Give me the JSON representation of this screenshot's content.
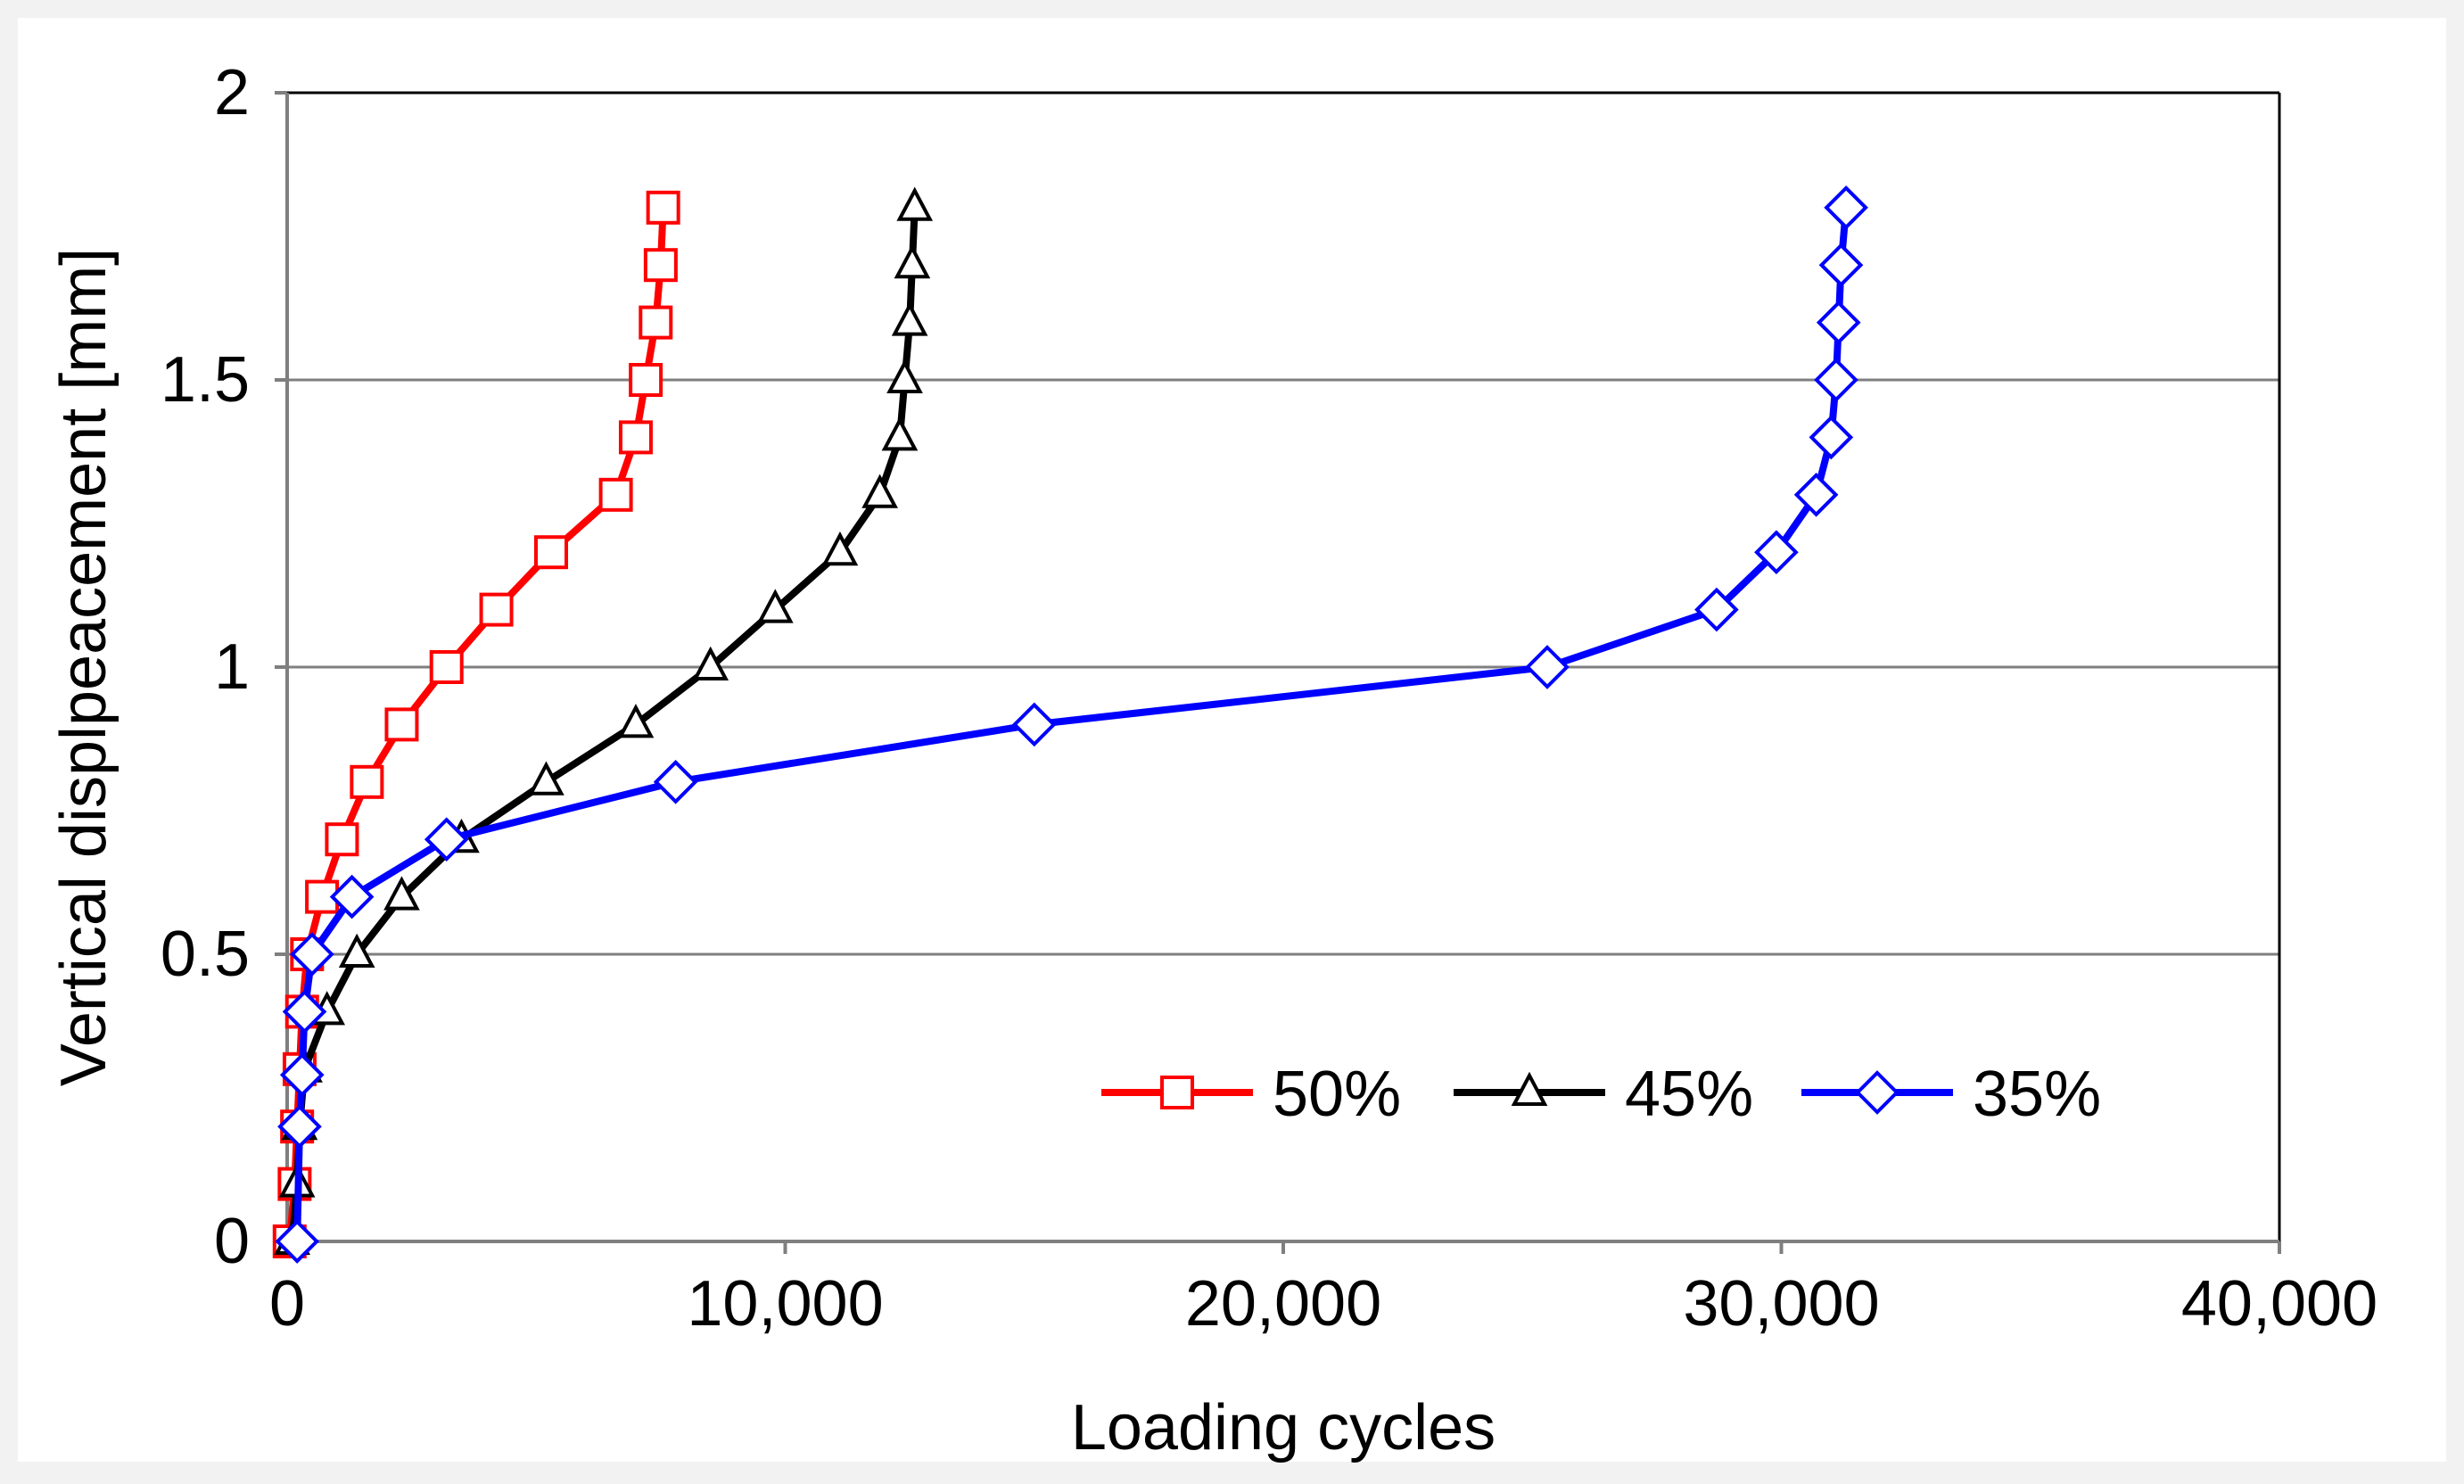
{
  "chart_data": {
    "type": "line",
    "title": "",
    "xlabel": "Loading cycles",
    "ylabel": "Vertical displpeacement  [mm]",
    "xlim": [
      0,
      40000
    ],
    "ylim": [
      0,
      2
    ],
    "xticks": [
      0,
      10000,
      20000,
      30000,
      40000
    ],
    "xtick_labels": [
      "0",
      "10,000",
      "20,000",
      "30,000",
      "40,000"
    ],
    "yticks": [
      0,
      0.5,
      1,
      1.5,
      2
    ],
    "ytick_labels": [
      "0",
      "0.5",
      "1",
      "1.5",
      "2"
    ],
    "grid": "horizontal",
    "legend_position": "bottom-right",
    "series": [
      {
        "name": "50%",
        "color": "#ff0000",
        "marker": "square",
        "x": [
          50,
          150,
          200,
          250,
          300,
          400,
          700,
          1100,
          1600,
          2300,
          3200,
          4200,
          5300,
          6600,
          7000,
          7200,
          7400,
          7500,
          7550
        ],
        "y": [
          0,
          0.1,
          0.2,
          0.3,
          0.4,
          0.5,
          0.6,
          0.7,
          0.8,
          0.9,
          1.0,
          1.1,
          1.2,
          1.3,
          1.4,
          1.5,
          1.6,
          1.7,
          1.8
        ]
      },
      {
        "name": "45%",
        "color": "#000000",
        "marker": "triangle",
        "x": [
          100,
          200,
          250,
          350,
          800,
          1400,
          2300,
          3500,
          5200,
          7000,
          8500,
          9800,
          11100,
          11900,
          12300,
          12400,
          12500,
          12550,
          12600
        ],
        "y": [
          0,
          0.1,
          0.2,
          0.3,
          0.4,
          0.5,
          0.6,
          0.7,
          0.8,
          0.9,
          1.0,
          1.1,
          1.2,
          1.3,
          1.4,
          1.5,
          1.6,
          1.7,
          1.8
        ]
      },
      {
        "name": "35%",
        "color": "#0000ff",
        "marker": "diamond",
        "x": [
          200,
          250,
          300,
          350,
          500,
          1300,
          3200,
          7800,
          15000,
          25300,
          28700,
          29900,
          30700,
          31000,
          31100,
          31150,
          31200,
          31300
        ],
        "y": [
          0,
          0.2,
          0.29,
          0.4,
          0.5,
          0.6,
          0.7,
          0.8,
          0.9,
          1.0,
          1.1,
          1.2,
          1.3,
          1.4,
          1.5,
          1.6,
          1.7,
          1.8
        ]
      }
    ]
  }
}
